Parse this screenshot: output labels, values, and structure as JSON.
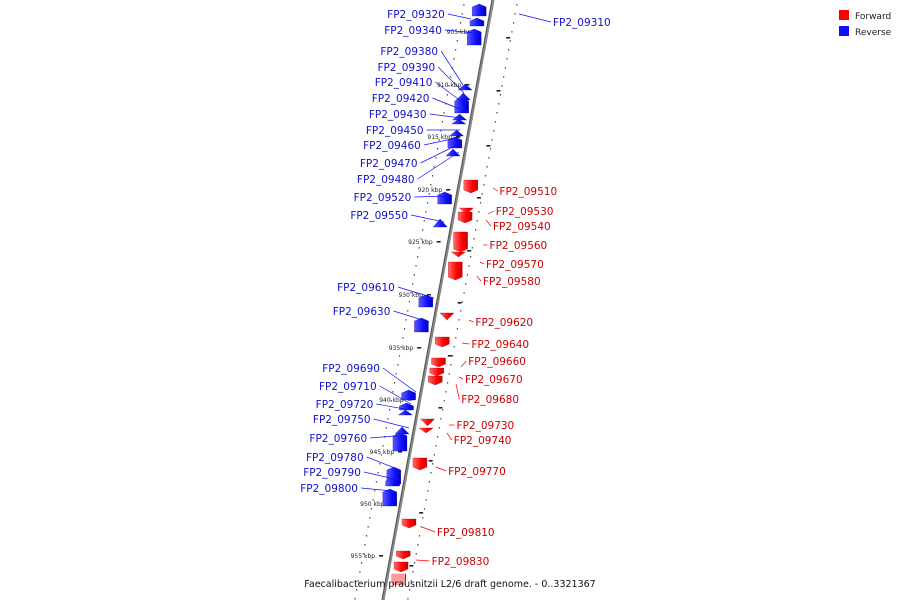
{
  "title": "Faecalibacterium prausnitzii L2/6 draft genome. - 0..3321367",
  "legend": [
    {
      "label": "Forward",
      "color": "#ff0000"
    },
    {
      "label": "Reverse",
      "color": "#1010ff"
    }
  ],
  "scale_ticks": [
    "905 kbp",
    "910 kbp",
    "915 kbp",
    "920 kbp",
    "925 kbp",
    "930 kbp",
    "935 kbp",
    "940 kbp",
    "945 kbp",
    "950 kbp",
    "955 kbp"
  ],
  "genes_reverse": [
    "FP2_09310",
    "FP2_09320",
    "FP2_09340",
    "FP2_09380",
    "FP2_09390",
    "FP2_09410",
    "FP2_09420",
    "FP2_09430",
    "FP2_09450",
    "FP2_09460",
    "FP2_09470",
    "FP2_09480",
    "FP2_09520",
    "FP2_09550",
    "FP2_09610",
    "FP2_09630",
    "FP2_09690",
    "FP2_09710",
    "FP2_09720",
    "FP2_09750",
    "FP2_09760",
    "FP2_09780",
    "FP2_09790",
    "FP2_09800"
  ],
  "genes_forward": [
    "FP2_09510",
    "FP2_09530",
    "FP2_09540",
    "FP2_09560",
    "FP2_09570",
    "FP2_09580",
    "FP2_09620",
    "FP2_09640",
    "FP2_09660",
    "FP2_09670",
    "FP2_09680",
    "FP2_09730",
    "FP2_09740",
    "FP2_09770",
    "FP2_09810",
    "FP2_09830"
  ]
}
